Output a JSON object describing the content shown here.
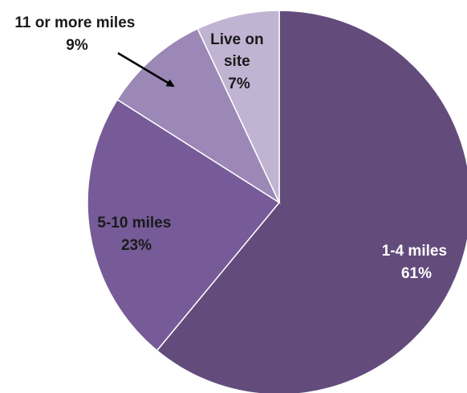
{
  "chart_data": {
    "type": "pie",
    "title": "",
    "start": "12 o'clock, clockwise",
    "legend": "none",
    "slices": [
      {
        "label_lines": [
          "1-4 miles"
        ],
        "value_label": "61%",
        "value": 61,
        "color": "#634c7c"
      },
      {
        "label_lines": [
          "5-10 miles"
        ],
        "value_label": "23%",
        "value": 23,
        "color": "#765b98"
      },
      {
        "label_lines": [
          "11 or more miles"
        ],
        "value_label": "9%",
        "value": 9,
        "color": "#9b88b6"
      },
      {
        "label_lines": [
          "Live on",
          "site"
        ],
        "value_label": "7%",
        "value": 7,
        "color": "#c1b4d2"
      }
    ]
  }
}
